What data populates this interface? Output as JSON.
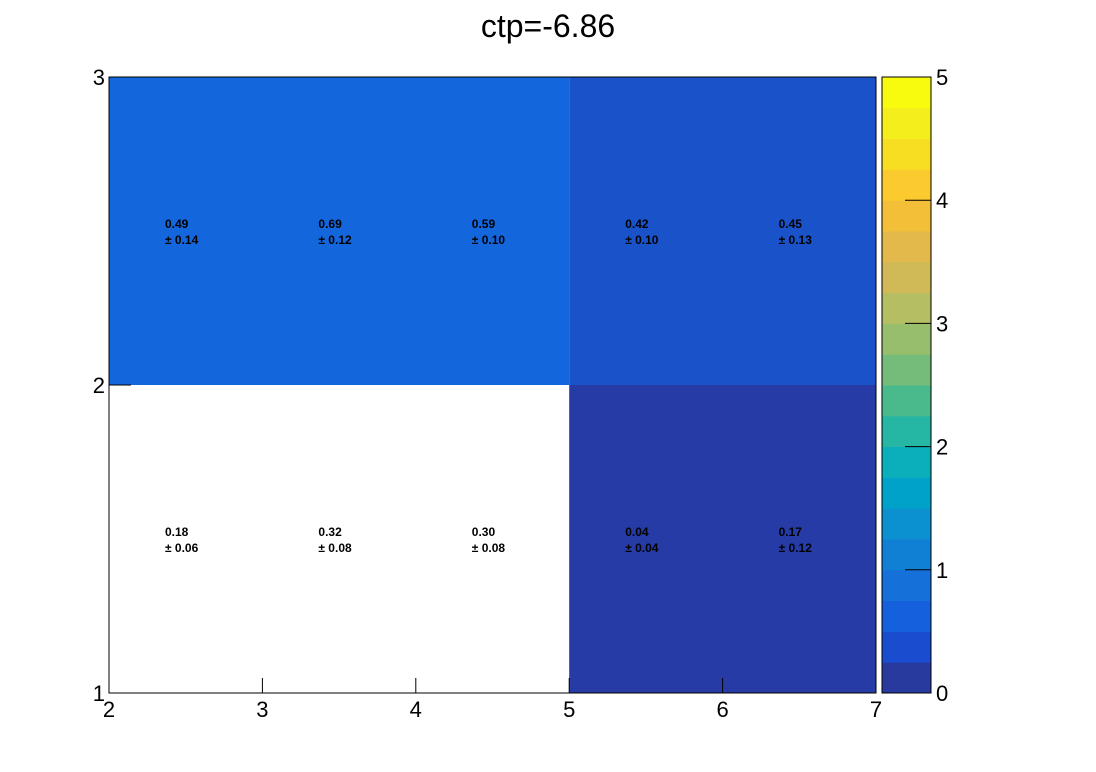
{
  "chart_data": {
    "type": "heatmap",
    "title": "ctp=-6.86",
    "xlabel": "",
    "ylabel": "",
    "x_edges": [
      2,
      3,
      4,
      5,
      6,
      7
    ],
    "y_edges": [
      1,
      2,
      3
    ],
    "xlim": [
      2,
      7
    ],
    "ylim": [
      1,
      3
    ],
    "x_tick_labels": [
      "2",
      "3",
      "4",
      "5",
      "6",
      "7"
    ],
    "y_tick_labels": [
      "1",
      "2",
      "3"
    ],
    "zlim": [
      0,
      5
    ],
    "colorbar_tick_labels": [
      "0",
      "1",
      "2",
      "3",
      "4",
      "5"
    ],
    "cells": [
      {
        "x": 2.5,
        "y": 2.5,
        "value": 0.49,
        "error": 0.14,
        "value_text": "0.49",
        "error_text": "± 0.14"
      },
      {
        "x": 3.5,
        "y": 2.5,
        "value": 0.69,
        "error": 0.12,
        "value_text": "0.69",
        "error_text": "± 0.12"
      },
      {
        "x": 4.5,
        "y": 2.5,
        "value": 0.59,
        "error": 0.1,
        "value_text": "0.59",
        "error_text": "± 0.10"
      },
      {
        "x": 5.5,
        "y": 2.5,
        "value": 0.42,
        "error": 0.1,
        "value_text": "0.42",
        "error_text": "± 0.10"
      },
      {
        "x": 6.5,
        "y": 2.5,
        "value": 0.45,
        "error": 0.13,
        "value_text": "0.45",
        "error_text": "± 0.13"
      },
      {
        "x": 2.5,
        "y": 1.5,
        "value": 0.18,
        "error": 0.06,
        "value_text": "0.18",
        "error_text": "± 0.06"
      },
      {
        "x": 3.5,
        "y": 1.5,
        "value": 0.32,
        "error": 0.08,
        "value_text": "0.32",
        "error_text": "± 0.08"
      },
      {
        "x": 4.5,
        "y": 1.5,
        "value": 0.3,
        "error": 0.08,
        "value_text": "0.30",
        "error_text": "± 0.08"
      },
      {
        "x": 5.5,
        "y": 1.5,
        "value": 0.04,
        "error": 0.04,
        "value_text": "0.04",
        "error_text": "± 0.04"
      },
      {
        "x": 6.5,
        "y": 1.5,
        "value": 0.17,
        "error": 0.12,
        "value_text": "0.17",
        "error_text": "± 0.12"
      }
    ],
    "filled_regions": [
      {
        "x_range": [
          2,
          5
        ],
        "y_range": [
          2,
          3
        ],
        "color": "#1366DB"
      },
      {
        "x_range": [
          5,
          7
        ],
        "y_range": [
          2,
          3
        ],
        "color": "#1A52C9"
      },
      {
        "x_range": [
          5,
          7
        ],
        "y_range": [
          1,
          2
        ],
        "color": "#273BA6"
      }
    ],
    "palette": [
      "#283A9E",
      "#1A4CD0",
      "#1460DD",
      "#1570D9",
      "#1080D4",
      "#0B90D0",
      "#00A2CA",
      "#0BAEBB",
      "#25B6A4",
      "#4ABA8D",
      "#75BC7B",
      "#97BE6D",
      "#B5BE62",
      "#CFBA57",
      "#E2B94A",
      "#F3BE38",
      "#FBCA2E",
      "#F7DE23",
      "#F3EE1C",
      "#F9FB0E"
    ]
  }
}
